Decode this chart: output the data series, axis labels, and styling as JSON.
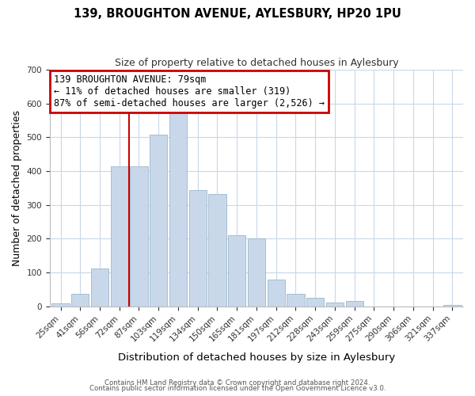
{
  "title": "139, BROUGHTON AVENUE, AYLESBURY, HP20 1PU",
  "subtitle": "Size of property relative to detached houses in Aylesbury",
  "xlabel": "Distribution of detached houses by size in Aylesbury",
  "ylabel": "Number of detached properties",
  "bar_color": "#c8d8ea",
  "bar_edge_color": "#9ab8cc",
  "bin_labels": [
    "25sqm",
    "41sqm",
    "56sqm",
    "72sqm",
    "87sqm",
    "103sqm",
    "119sqm",
    "134sqm",
    "150sqm",
    "165sqm",
    "181sqm",
    "197sqm",
    "212sqm",
    "228sqm",
    "243sqm",
    "259sqm",
    "275sqm",
    "290sqm",
    "306sqm",
    "321sqm",
    "337sqm"
  ],
  "bin_values": [
    8,
    38,
    113,
    415,
    415,
    508,
    575,
    345,
    333,
    210,
    202,
    80,
    37,
    26,
    12,
    15,
    0,
    0,
    0,
    0,
    4
  ],
  "ylim": [
    0,
    700
  ],
  "yticks": [
    0,
    100,
    200,
    300,
    400,
    500,
    600,
    700
  ],
  "annotation_line1": "139 BROUGHTON AVENUE: 79sqm",
  "annotation_line2": "← 11% of detached houses are smaller (319)",
  "annotation_line3": "87% of semi-detached houses are larger (2,526) →",
  "annotation_box_color": "#ffffff",
  "annotation_box_edge": "#cc0000",
  "vline_color": "#cc0000",
  "footer1": "Contains HM Land Registry data © Crown copyright and database right 2024.",
  "footer2": "Contains public sector information licensed under the Open Government Licence v3.0."
}
